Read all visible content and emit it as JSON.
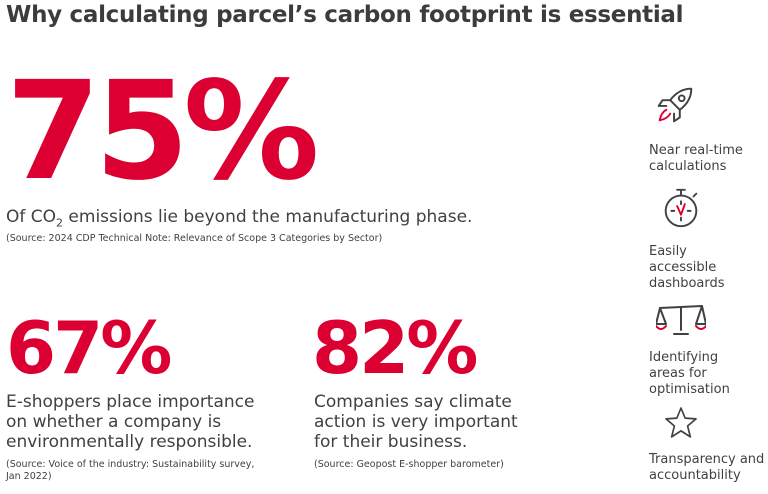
{
  "title": "Why calculating parcel’s carbon footprint is essential",
  "stat_main": {
    "value": "75%",
    "desc_pre": "Of CO",
    "desc_sub": "2",
    "desc_post": " emissions lie beyond the manufacturing phase.",
    "source": "(Source: 2024 CDP Technical Note: Relevance of Scope 3 Categories by Sector)"
  },
  "stat_left": {
    "value": "67%",
    "desc_lines": [
      "E-shoppers place importance",
      "on whether a company is",
      "environmentally responsible."
    ],
    "source_lines": [
      "(Source: Voice of the industry: Sustainability survey,",
      "Jan 2022)"
    ]
  },
  "stat_right": {
    "value": "82%",
    "desc_lines": [
      "Companies say climate",
      "action is very important",
      "for their business."
    ],
    "source": "(Source: Geopost E-shopper barometer)"
  },
  "features": [
    {
      "icon": "rocket-icon",
      "lines": [
        "Near real-time",
        "calculations"
      ]
    },
    {
      "icon": "stopwatch-icon",
      "lines": [
        "Easily",
        "accessible",
        "dashboards"
      ]
    },
    {
      "icon": "scales-icon",
      "lines": [
        "Identifying",
        "areas for",
        "optimisation"
      ]
    },
    {
      "icon": "star-icon",
      "lines": [
        "Transparency and",
        "accountability"
      ]
    }
  ],
  "colors": {
    "accent": "#dc0032",
    "text": "#414042",
    "background": "#ffffff"
  }
}
